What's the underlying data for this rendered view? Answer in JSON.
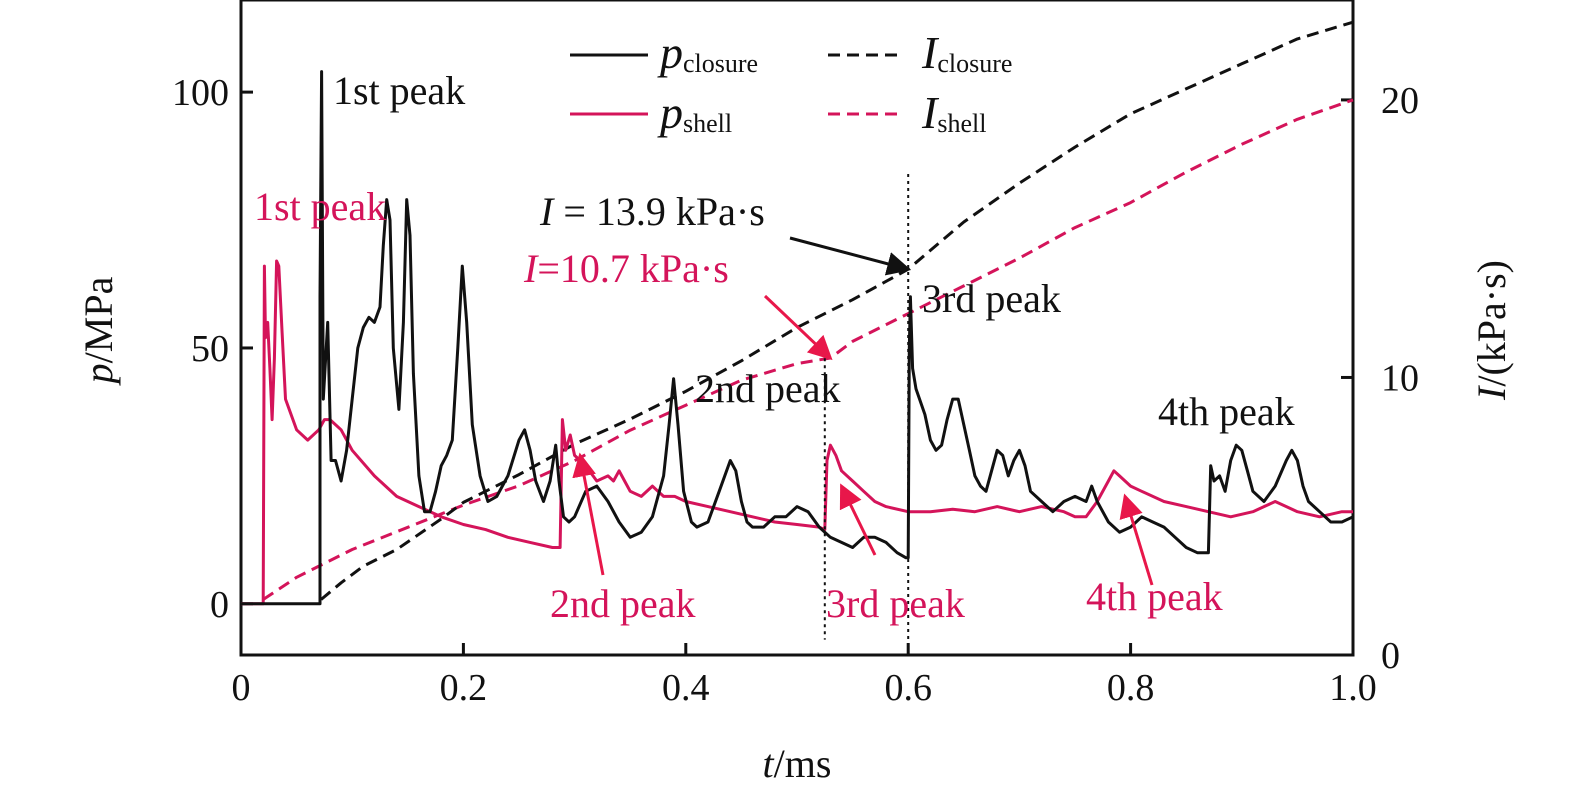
{
  "colors": {
    "closure": "#111111",
    "shell": "#d4145a",
    "arrow_black": "#111111",
    "arrow_red": "#e8174a"
  },
  "chart_data": {
    "type": "line",
    "xlabel": {
      "italic": "t",
      "rest": "/ms"
    },
    "ylabel_left": {
      "italic": "p",
      "rest": "/MPa"
    },
    "ylabel_right": {
      "italic": "I",
      "rest": "/(kPa·s)"
    },
    "xlim": [
      0,
      1.0
    ],
    "ylim_left": [
      -10,
      118
    ],
    "ylim_right": [
      0,
      23.6
    ],
    "x_ticks": [
      "0",
      "0.2",
      "0.4",
      "0.6",
      "0.8",
      "1.0"
    ],
    "y_left_ticks": [
      "0",
      "50",
      "100"
    ],
    "y_right_ticks": [
      "0",
      "10",
      "20"
    ],
    "legend": [
      {
        "main": "p",
        "sub": "closure",
        "style": "solid",
        "color": "#111111"
      },
      {
        "main": "I",
        "sub": "closure",
        "style": "dashed",
        "color": "#111111"
      },
      {
        "main": "p",
        "sub": "shell",
        "style": "solid",
        "color": "#d4145a"
      },
      {
        "main": "I",
        "sub": "shell",
        "style": "dashed",
        "color": "#d4145a"
      }
    ],
    "series": [
      {
        "name": "p_closure",
        "axis": "left",
        "style": "solid",
        "color": "#111111",
        "points": [
          [
            0.0,
            0
          ],
          [
            0.071,
            0
          ],
          [
            0.071,
            60
          ],
          [
            0.0725,
            104
          ],
          [
            0.074,
            40
          ],
          [
            0.078,
            55
          ],
          [
            0.081,
            28
          ],
          [
            0.085,
            28
          ],
          [
            0.09,
            24
          ],
          [
            0.095,
            30
          ],
          [
            0.1,
            40
          ],
          [
            0.105,
            50
          ],
          [
            0.11,
            54
          ],
          [
            0.115,
            56
          ],
          [
            0.12,
            55
          ],
          [
            0.125,
            58
          ],
          [
            0.128,
            70
          ],
          [
            0.131,
            79
          ],
          [
            0.134,
            75
          ],
          [
            0.137,
            50
          ],
          [
            0.142,
            38
          ],
          [
            0.146,
            55
          ],
          [
            0.149,
            79
          ],
          [
            0.152,
            72
          ],
          [
            0.155,
            45
          ],
          [
            0.16,
            25
          ],
          [
            0.165,
            18
          ],
          [
            0.17,
            18
          ],
          [
            0.175,
            22
          ],
          [
            0.18,
            27
          ],
          [
            0.185,
            29
          ],
          [
            0.19,
            32
          ],
          [
            0.195,
            50
          ],
          [
            0.199,
            66
          ],
          [
            0.203,
            55
          ],
          [
            0.208,
            35
          ],
          [
            0.215,
            25
          ],
          [
            0.222,
            20
          ],
          [
            0.23,
            21
          ],
          [
            0.24,
            25
          ],
          [
            0.25,
            32
          ],
          [
            0.255,
            34
          ],
          [
            0.26,
            30
          ],
          [
            0.265,
            24
          ],
          [
            0.272,
            20
          ],
          [
            0.278,
            24
          ],
          [
            0.283,
            31
          ],
          [
            0.286,
            24
          ],
          [
            0.29,
            17
          ],
          [
            0.295,
            16
          ],
          [
            0.3,
            17
          ],
          [
            0.31,
            22
          ],
          [
            0.32,
            23
          ],
          [
            0.33,
            20
          ],
          [
            0.34,
            16
          ],
          [
            0.35,
            13
          ],
          [
            0.36,
            14
          ],
          [
            0.37,
            17
          ],
          [
            0.38,
            25
          ],
          [
            0.385,
            35
          ],
          [
            0.389,
            44
          ],
          [
            0.393,
            35
          ],
          [
            0.398,
            22
          ],
          [
            0.405,
            16
          ],
          [
            0.41,
            15
          ],
          [
            0.42,
            16
          ],
          [
            0.43,
            22
          ],
          [
            0.44,
            28
          ],
          [
            0.445,
            26
          ],
          [
            0.45,
            20
          ],
          [
            0.455,
            16
          ],
          [
            0.46,
            15
          ],
          [
            0.47,
            15
          ],
          [
            0.48,
            17
          ],
          [
            0.49,
            17
          ],
          [
            0.5,
            19
          ],
          [
            0.51,
            18
          ],
          [
            0.52,
            15
          ],
          [
            0.53,
            13
          ],
          [
            0.54,
            12
          ],
          [
            0.55,
            11
          ],
          [
            0.56,
            13
          ],
          [
            0.57,
            13
          ],
          [
            0.58,
            12
          ],
          [
            0.59,
            10
          ],
          [
            0.598,
            9
          ],
          [
            0.6,
            9
          ],
          [
            0.601,
            50
          ],
          [
            0.602,
            60
          ],
          [
            0.604,
            46
          ],
          [
            0.607,
            42
          ],
          [
            0.615,
            37
          ],
          [
            0.62,
            32
          ],
          [
            0.625,
            30
          ],
          [
            0.63,
            31
          ],
          [
            0.635,
            36
          ],
          [
            0.64,
            40
          ],
          [
            0.645,
            40
          ],
          [
            0.65,
            35
          ],
          [
            0.655,
            30
          ],
          [
            0.66,
            25
          ],
          [
            0.665,
            23
          ],
          [
            0.67,
            22
          ],
          [
            0.675,
            26
          ],
          [
            0.68,
            30
          ],
          [
            0.685,
            29
          ],
          [
            0.69,
            25
          ],
          [
            0.695,
            28
          ],
          [
            0.7,
            30
          ],
          [
            0.705,
            27
          ],
          [
            0.71,
            22
          ],
          [
            0.72,
            20
          ],
          [
            0.73,
            18
          ],
          [
            0.74,
            20
          ],
          [
            0.75,
            21
          ],
          [
            0.76,
            20
          ],
          [
            0.765,
            23
          ],
          [
            0.77,
            20
          ],
          [
            0.78,
            16
          ],
          [
            0.79,
            14
          ],
          [
            0.8,
            15
          ],
          [
            0.81,
            17
          ],
          [
            0.82,
            16
          ],
          [
            0.83,
            15
          ],
          [
            0.84,
            13
          ],
          [
            0.85,
            11
          ],
          [
            0.86,
            10
          ],
          [
            0.865,
            10
          ],
          [
            0.87,
            10
          ],
          [
            0.872,
            27
          ],
          [
            0.875,
            24
          ],
          [
            0.88,
            25
          ],
          [
            0.885,
            22
          ],
          [
            0.89,
            28
          ],
          [
            0.895,
            31
          ],
          [
            0.9,
            30
          ],
          [
            0.905,
            26
          ],
          [
            0.91,
            22
          ],
          [
            0.92,
            20
          ],
          [
            0.93,
            23
          ],
          [
            0.94,
            28
          ],
          [
            0.945,
            30
          ],
          [
            0.95,
            28
          ],
          [
            0.955,
            23
          ],
          [
            0.96,
            20
          ],
          [
            0.97,
            18
          ],
          [
            0.98,
            16
          ],
          [
            0.99,
            16
          ],
          [
            1.0,
            17
          ]
        ]
      },
      {
        "name": "p_shell",
        "axis": "left",
        "style": "solid",
        "color": "#d4145a",
        "points": [
          [
            0.0,
            0
          ],
          [
            0.02,
            0
          ],
          [
            0.021,
            66
          ],
          [
            0.022,
            52
          ],
          [
            0.024,
            55
          ],
          [
            0.026,
            46
          ],
          [
            0.028,
            36
          ],
          [
            0.03,
            48
          ],
          [
            0.032,
            67
          ],
          [
            0.034,
            66
          ],
          [
            0.037,
            53
          ],
          [
            0.04,
            40
          ],
          [
            0.05,
            34
          ],
          [
            0.06,
            32
          ],
          [
            0.07,
            34
          ],
          [
            0.075,
            36
          ],
          [
            0.08,
            36
          ],
          [
            0.09,
            34
          ],
          [
            0.1,
            30
          ],
          [
            0.12,
            25
          ],
          [
            0.14,
            21
          ],
          [
            0.16,
            19
          ],
          [
            0.18,
            17
          ],
          [
            0.2,
            15.5
          ],
          [
            0.22,
            14.5
          ],
          [
            0.24,
            13
          ],
          [
            0.26,
            12
          ],
          [
            0.28,
            11
          ],
          [
            0.287,
            11
          ],
          [
            0.289,
            36
          ],
          [
            0.292,
            30
          ],
          [
            0.296,
            33
          ],
          [
            0.3,
            29
          ],
          [
            0.31,
            27
          ],
          [
            0.32,
            24
          ],
          [
            0.33,
            25
          ],
          [
            0.335,
            24
          ],
          [
            0.34,
            26
          ],
          [
            0.345,
            24
          ],
          [
            0.35,
            22
          ],
          [
            0.36,
            21
          ],
          [
            0.37,
            23
          ],
          [
            0.375,
            22
          ],
          [
            0.38,
            21
          ],
          [
            0.39,
            21
          ],
          [
            0.4,
            20
          ],
          [
            0.42,
            19
          ],
          [
            0.44,
            18
          ],
          [
            0.46,
            17
          ],
          [
            0.48,
            16
          ],
          [
            0.5,
            15.5
          ],
          [
            0.52,
            15
          ],
          [
            0.525,
            14.5
          ],
          [
            0.527,
            28
          ],
          [
            0.53,
            31
          ],
          [
            0.535,
            29
          ],
          [
            0.54,
            26
          ],
          [
            0.55,
            24
          ],
          [
            0.56,
            22
          ],
          [
            0.57,
            20
          ],
          [
            0.58,
            19
          ],
          [
            0.6,
            18
          ],
          [
            0.62,
            18
          ],
          [
            0.64,
            18.5
          ],
          [
            0.66,
            18
          ],
          [
            0.68,
            19
          ],
          [
            0.7,
            18
          ],
          [
            0.72,
            19
          ],
          [
            0.74,
            18
          ],
          [
            0.75,
            17
          ],
          [
            0.76,
            17
          ],
          [
            0.77,
            20
          ],
          [
            0.78,
            24
          ],
          [
            0.785,
            26
          ],
          [
            0.79,
            25
          ],
          [
            0.8,
            23
          ],
          [
            0.81,
            22
          ],
          [
            0.83,
            20
          ],
          [
            0.85,
            19
          ],
          [
            0.87,
            18
          ],
          [
            0.89,
            17
          ],
          [
            0.91,
            18
          ],
          [
            0.93,
            20
          ],
          [
            0.95,
            18
          ],
          [
            0.97,
            17
          ],
          [
            0.99,
            18
          ],
          [
            1.0,
            18
          ]
        ]
      },
      {
        "name": "I_closure",
        "axis": "right",
        "style": "dashed",
        "color": "#111111",
        "points": [
          [
            0.072,
            2.0
          ],
          [
            0.09,
            2.6
          ],
          [
            0.11,
            3.2
          ],
          [
            0.14,
            3.8
          ],
          [
            0.18,
            4.9
          ],
          [
            0.2,
            5.5
          ],
          [
            0.25,
            6.5
          ],
          [
            0.3,
            7.6
          ],
          [
            0.35,
            8.5
          ],
          [
            0.4,
            9.5
          ],
          [
            0.45,
            10.6
          ],
          [
            0.5,
            11.8
          ],
          [
            0.55,
            12.8
          ],
          [
            0.6,
            13.9
          ],
          [
            0.65,
            15.6
          ],
          [
            0.7,
            17.0
          ],
          [
            0.75,
            18.3
          ],
          [
            0.8,
            19.5
          ],
          [
            0.85,
            20.4
          ],
          [
            0.9,
            21.3
          ],
          [
            0.95,
            22.2
          ],
          [
            1.0,
            22.8
          ]
        ]
      },
      {
        "name": "I_shell",
        "axis": "right",
        "style": "dashed",
        "color": "#d4145a",
        "points": [
          [
            0.02,
            2.0
          ],
          [
            0.05,
            2.8
          ],
          [
            0.1,
            3.8
          ],
          [
            0.15,
            4.6
          ],
          [
            0.2,
            5.4
          ],
          [
            0.25,
            6.1
          ],
          [
            0.3,
            7.0
          ],
          [
            0.35,
            8.1
          ],
          [
            0.4,
            9.0
          ],
          [
            0.45,
            9.9
          ],
          [
            0.5,
            10.5
          ],
          [
            0.53,
            10.7
          ],
          [
            0.55,
            11.3
          ],
          [
            0.6,
            12.3
          ],
          [
            0.65,
            13.3
          ],
          [
            0.7,
            14.3
          ],
          [
            0.75,
            15.4
          ],
          [
            0.8,
            16.3
          ],
          [
            0.85,
            17.4
          ],
          [
            0.9,
            18.4
          ],
          [
            0.95,
            19.3
          ],
          [
            1.0,
            20.0
          ]
        ]
      }
    ],
    "vertical_markers": [
      0.525,
      0.6
    ],
    "annotations": {
      "black": [
        "1st peak",
        "2nd peak",
        "3rd peak",
        "4th peak"
      ],
      "red": [
        "1st peak",
        "2nd peak",
        "3rd peak",
        "4th peak"
      ],
      "impulse_closure": {
        "lhs": "I",
        "rest": " = 13.9 kPa·s"
      },
      "impulse_shell": {
        "lhs": "I",
        "rest": "=10.7 kPa·s"
      }
    }
  }
}
